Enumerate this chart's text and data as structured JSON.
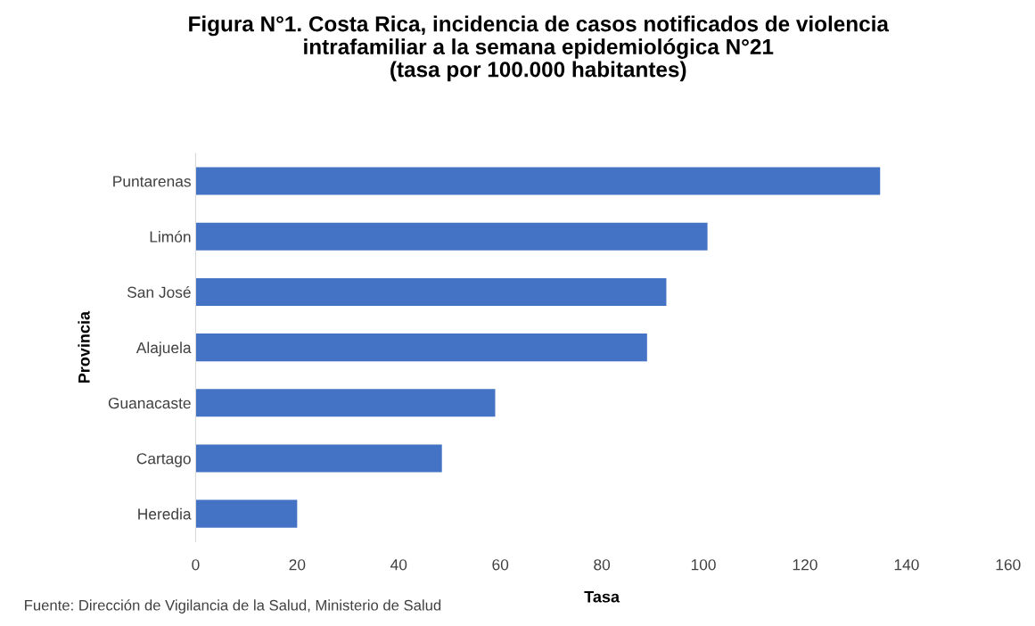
{
  "chart_data": {
    "type": "bar",
    "orientation": "horizontal",
    "title": "Figura N°1. Costa Rica, incidencia de casos notificados de violencia\nintrafamiliar a la semana epidemiológica N°21\n(tasa por 100.000 habitantes)",
    "xlabel": "Tasa",
    "ylabel": "Provincia",
    "categories": [
      "Puntarenas",
      "Limón",
      "San José",
      "Alajuela",
      "Guanacaste",
      "Cartago",
      "Heredia"
    ],
    "values": [
      134.8,
      100.8,
      92.7,
      88.9,
      59.0,
      48.5,
      20.0
    ],
    "color": "#4472c4",
    "xlim": [
      0,
      160
    ],
    "xticks": [
      0,
      20,
      40,
      60,
      80,
      100,
      120,
      140,
      160
    ],
    "grid": false,
    "annotations": [
      "Fuente: Dirección de Vigilancia de la Salud, Ministerio de Salud"
    ]
  }
}
